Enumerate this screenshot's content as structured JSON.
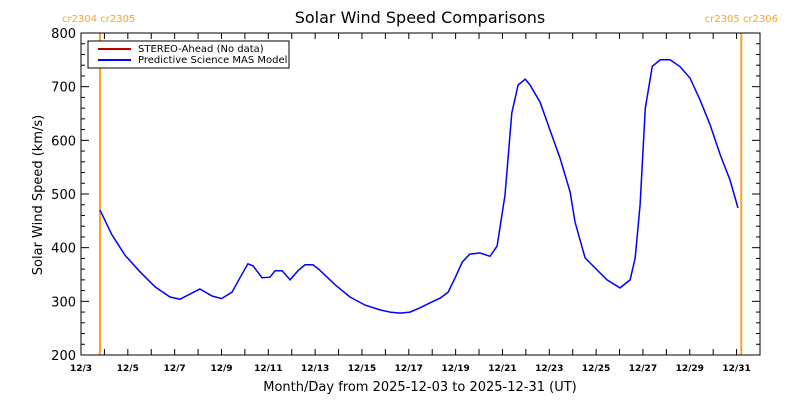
{
  "chart_data": {
    "type": "line",
    "title": "Solar Wind Speed Comparisons",
    "xlabel": "Month/Day from 2025-12-03 to 2025-12-31 (UT)",
    "ylabel": "Solar Wind Speed (km/s)",
    "ylim": [
      200,
      800
    ],
    "yticks": [
      200,
      300,
      400,
      500,
      600,
      700,
      800
    ],
    "xlim_days_from_start": [
      0,
      29
    ],
    "xtick_labels": [
      "12/3",
      "12/5",
      "12/7",
      "12/9",
      "12/11",
      "12/13",
      "12/15",
      "12/17",
      "12/19",
      "12/21",
      "12/23",
      "12/25",
      "12/27",
      "12/29",
      "12/31"
    ],
    "legend_placement": "top-left",
    "legend": [
      {
        "name": "STEREO-Ahead (No data)",
        "color": "#c00000"
      },
      {
        "name": "Predictive Science MAS Model",
        "color": "#0000ff"
      }
    ],
    "carrington_markers": [
      {
        "day": 0.81,
        "label": "cr2304 cr2305",
        "color": "#ffa020"
      },
      {
        "day": 28.2,
        "label": "cr2305 cr2306",
        "color": "#ffa020"
      }
    ],
    "series": [
      {
        "name": "Predictive Science MAS Model",
        "color": "#0000ff",
        "x": [
          0.81,
          1.32,
          1.88,
          2.52,
          3.16,
          3.8,
          4.23,
          5.08,
          5.6,
          6.0,
          6.45,
          6.79,
          7.13,
          7.35,
          7.73,
          8.07,
          8.29,
          8.59,
          8.93,
          9.27,
          9.57,
          9.91,
          10.2,
          10.85,
          11.49,
          12.13,
          12.77,
          13.2,
          13.63,
          14.05,
          14.48,
          14.9,
          15.34,
          15.68,
          15.98,
          16.28,
          16.6,
          17.04,
          17.47,
          17.77,
          18.11,
          18.4,
          18.67,
          18.97,
          19.18,
          19.61,
          20.03,
          20.46,
          20.89,
          21.1,
          21.53,
          21.96,
          22.47,
          23.02,
          23.45,
          23.67,
          23.88,
          24.1,
          24.4,
          24.74,
          25.16,
          25.59,
          26.01,
          26.44,
          26.87,
          27.3,
          27.72,
          28.06
        ],
        "y": [
          470,
          424,
          386,
          355,
          327,
          308,
          304,
          323,
          310,
          305,
          317,
          344,
          370,
          366,
          344,
          345,
          357,
          357,
          340,
          357,
          368,
          368,
          358,
          331,
          308,
          293,
          284,
          280,
          278,
          280,
          288,
          297,
          306,
          317,
          344,
          373,
          388,
          390,
          384,
          403,
          498,
          651,
          703,
          714,
          703,
          671,
          619,
          567,
          504,
          448,
          381,
          362,
          340,
          325,
          340,
          381,
          480,
          660,
          738,
          750,
          750,
          737,
          716,
          675,
          629,
          573,
          526,
          474
        ]
      }
    ]
  }
}
